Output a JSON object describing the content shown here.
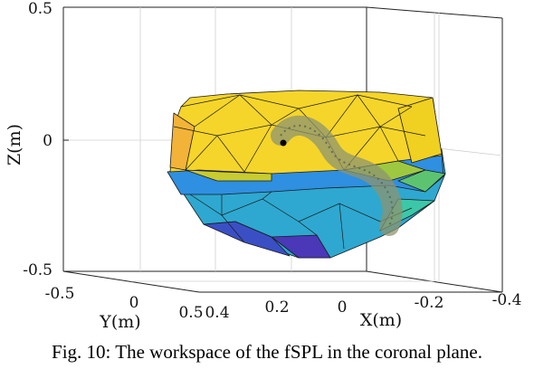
{
  "caption": "Fig. 10: The workspace of the fSPL in the coronal plane.",
  "chart_data": {
    "type": "3d-surface",
    "zlabel": "Z(m)",
    "ylabel": "Y(m)",
    "xlabel": "X(m)",
    "z_ticks": [
      "0.5",
      "0",
      "-0.5"
    ],
    "y_ticks": [
      "-0.5",
      "0",
      "0.5"
    ],
    "x_ticks": [
      "0.4",
      "0.2",
      "0",
      "-0.2",
      "-0.4"
    ],
    "zlim": [
      -0.5,
      0.5
    ],
    "ylim": [
      -0.5,
      0.5
    ],
    "xlim": [
      0.4,
      -0.4
    ],
    "grid": true,
    "colormap": "parula"
  }
}
